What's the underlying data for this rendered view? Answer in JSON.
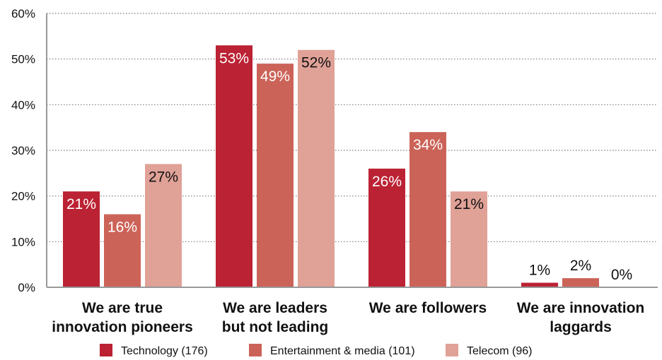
{
  "chart_data": {
    "type": "bar",
    "title": "",
    "xlabel": "",
    "ylabel": "",
    "ylim": [
      0,
      60
    ],
    "y_ticks": [
      "0%",
      "10%",
      "20%",
      "30%",
      "40%",
      "50%",
      "60%"
    ],
    "grid": "horizontal dotted",
    "legend_position": "bottom",
    "categories": [
      [
        "We are true",
        "innovation pioneers"
      ],
      [
        "We are leaders",
        "but not leading"
      ],
      [
        "We are followers"
      ],
      [
        "We are innovation",
        "laggards"
      ]
    ],
    "series": [
      {
        "name": "Technology (176)",
        "color": "#bb2233",
        "values": [
          21,
          53,
          26,
          1
        ],
        "labels": [
          "21%",
          "53%",
          "26%",
          "1%"
        ]
      },
      {
        "name": "Entertainment & media (101)",
        "color": "#cc6358",
        "values": [
          16,
          49,
          34,
          2
        ],
        "labels": [
          "16%",
          "49%",
          "34%",
          "2%"
        ]
      },
      {
        "name": "Telecom (96)",
        "color": "#e0a197",
        "values": [
          27,
          52,
          21,
          0
        ],
        "labels": [
          "27%",
          "52%",
          "21%",
          "0%"
        ]
      }
    ]
  }
}
